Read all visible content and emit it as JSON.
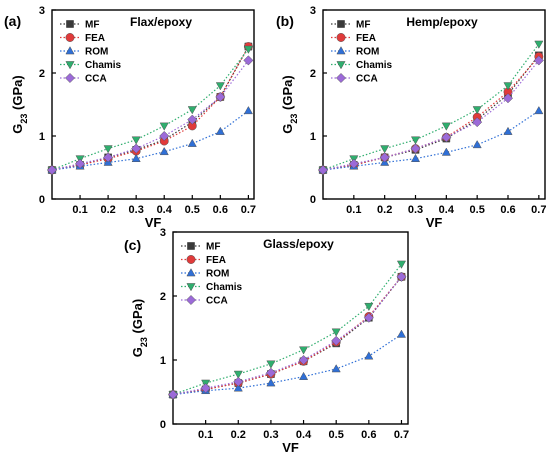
{
  "chart_data": [
    {
      "type": "line",
      "panel_label": "(a)",
      "title": "Flax/epoxy",
      "xlabel": "VF",
      "ylabel_main": "G",
      "ylabel_sub": "23",
      "ylabel_unit": " (GPa)",
      "xlim": [
        0.0,
        0.72
      ],
      "ylim": [
        0,
        3
      ],
      "xticks": [
        "0.1",
        "0.2",
        "0.3",
        "0.4",
        "0.5",
        "0.6",
        "0.7"
      ],
      "yticks": [
        "0",
        "1",
        "2",
        "3"
      ],
      "legend_position": "top-left",
      "x": [
        0.0,
        0.1,
        0.2,
        0.3,
        0.4,
        0.5,
        0.6,
        0.7
      ],
      "series": [
        {
          "name": "MF",
          "color": "#3a3a3a",
          "marker": "square",
          "values": [
            0.46,
            0.54,
            0.66,
            0.78,
            0.94,
            1.22,
            1.62,
            2.42
          ]
        },
        {
          "name": "FEA",
          "color": "#e03a3a",
          "marker": "circle",
          "values": [
            0.46,
            0.54,
            0.64,
            0.76,
            0.92,
            1.16,
            1.62,
            2.42
          ]
        },
        {
          "name": "ROM",
          "color": "#2f6fd6",
          "marker": "triangle-up",
          "values": [
            0.46,
            0.52,
            0.58,
            0.64,
            0.75,
            0.88,
            1.07,
            1.4
          ]
        },
        {
          "name": "Chamis",
          "color": "#2fae6e",
          "marker": "triangle-down",
          "values": [
            0.46,
            0.64,
            0.8,
            0.94,
            1.16,
            1.42,
            1.8,
            2.38
          ]
        },
        {
          "name": "CCA",
          "color": "#9c6ad8",
          "marker": "diamond",
          "values": [
            0.46,
            0.56,
            0.66,
            0.8,
            1.0,
            1.26,
            1.62,
            2.2
          ]
        }
      ]
    },
    {
      "type": "line",
      "panel_label": "(b)",
      "title": "Hemp/epoxy",
      "xlabel": "VF",
      "ylabel_main": "G",
      "ylabel_sub": "23",
      "ylabel_unit": " (GPa)",
      "xlim": [
        0.0,
        0.72
      ],
      "ylim": [
        0,
        3
      ],
      "xticks": [
        "0.1",
        "0.2",
        "0.3",
        "0.4",
        "0.5",
        "0.6",
        "0.7"
      ],
      "yticks": [
        "0",
        "1",
        "2",
        "3"
      ],
      "legend_position": "top-left",
      "x": [
        0.0,
        0.1,
        0.2,
        0.3,
        0.4,
        0.5,
        0.6,
        0.7
      ],
      "series": [
        {
          "name": "MF",
          "color": "#3a3a3a",
          "marker": "square",
          "values": [
            0.46,
            0.54,
            0.66,
            0.78,
            0.96,
            1.26,
            1.66,
            2.28
          ]
        },
        {
          "name": "FEA",
          "color": "#e03a3a",
          "marker": "circle",
          "values": [
            0.46,
            0.54,
            0.66,
            0.8,
            0.98,
            1.3,
            1.7,
            2.26
          ]
        },
        {
          "name": "ROM",
          "color": "#2f6fd6",
          "marker": "triangle-up",
          "values": [
            0.46,
            0.52,
            0.58,
            0.64,
            0.74,
            0.86,
            1.07,
            1.4
          ]
        },
        {
          "name": "Chamis",
          "color": "#2fae6e",
          "marker": "triangle-down",
          "values": [
            0.46,
            0.64,
            0.8,
            0.94,
            1.16,
            1.42,
            1.8,
            2.46
          ]
        },
        {
          "name": "CCA",
          "color": "#9c6ad8",
          "marker": "diamond",
          "values": [
            0.46,
            0.56,
            0.66,
            0.8,
            0.98,
            1.22,
            1.6,
            2.2
          ]
        }
      ]
    },
    {
      "type": "line",
      "panel_label": "(c)",
      "title": "Glass/epoxy",
      "xlabel": "VF",
      "ylabel_main": "G",
      "ylabel_sub": "23",
      "ylabel_unit": " (GPa)",
      "xlim": [
        0.0,
        0.72
      ],
      "ylim": [
        0,
        3
      ],
      "xticks": [
        "0.1",
        "0.2",
        "0.3",
        "0.4",
        "0.5",
        "0.6",
        "0.7"
      ],
      "yticks": [
        "0",
        "1",
        "2",
        "3"
      ],
      "legend_position": "top-left",
      "x": [
        0.0,
        0.1,
        0.2,
        0.3,
        0.4,
        0.5,
        0.6,
        0.7
      ],
      "series": [
        {
          "name": "MF",
          "color": "#3a3a3a",
          "marker": "square",
          "values": [
            0.46,
            0.54,
            0.64,
            0.78,
            0.98,
            1.26,
            1.66,
            2.3
          ]
        },
        {
          "name": "FEA",
          "color": "#e03a3a",
          "marker": "circle",
          "values": [
            0.46,
            0.54,
            0.64,
            0.78,
            0.98,
            1.28,
            1.68,
            2.3
          ]
        },
        {
          "name": "ROM",
          "color": "#2f6fd6",
          "marker": "triangle-up",
          "values": [
            0.46,
            0.52,
            0.56,
            0.64,
            0.74,
            0.86,
            1.06,
            1.4
          ]
        },
        {
          "name": "Chamis",
          "color": "#2fae6e",
          "marker": "triangle-down",
          "values": [
            0.46,
            0.64,
            0.78,
            0.94,
            1.16,
            1.44,
            1.84,
            2.5
          ]
        },
        {
          "name": "CCA",
          "color": "#9c6ad8",
          "marker": "diamond",
          "values": [
            0.46,
            0.56,
            0.66,
            0.8,
            1.0,
            1.3,
            1.66,
            2.3
          ]
        }
      ]
    }
  ]
}
